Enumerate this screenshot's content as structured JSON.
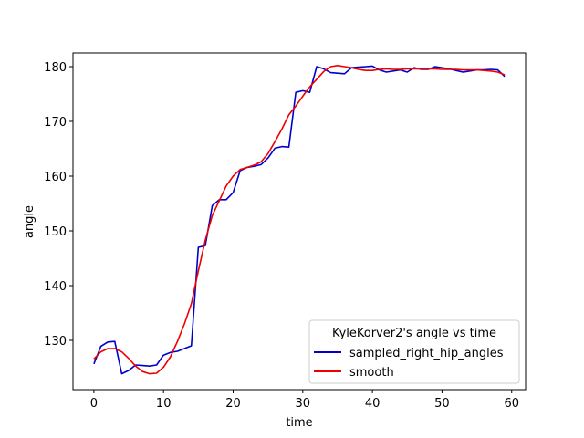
{
  "chart_data": {
    "type": "line",
    "xlabel": "time",
    "ylabel": "angle",
    "xlim": [
      -3,
      62
    ],
    "ylim": [
      121,
      182.5
    ],
    "xticks": [
      0,
      10,
      20,
      30,
      40,
      50,
      60
    ],
    "yticks": [
      130,
      140,
      150,
      160,
      170,
      180
    ],
    "grid": false,
    "legend": {
      "title": "KyleKorver2's angle vs time",
      "placement": "lower-right"
    },
    "colors": {
      "series_0": "#0000cc",
      "series_1": "#ee0000"
    },
    "x": [
      0,
      1,
      2,
      3,
      4,
      5,
      6,
      7,
      8,
      9,
      10,
      11,
      12,
      13,
      14,
      15,
      16,
      17,
      18,
      19,
      20,
      21,
      22,
      23,
      24,
      25,
      26,
      27,
      28,
      29,
      30,
      31,
      32,
      33,
      34,
      35,
      36,
      37,
      38,
      39,
      40,
      41,
      42,
      43,
      44,
      45,
      46,
      47,
      48,
      49,
      50,
      51,
      52,
      53,
      54,
      55,
      56,
      57,
      58,
      59
    ],
    "series": [
      {
        "name": "sampled_right_hip_angles",
        "values": [
          125.7,
          128.9,
          129.7,
          129.8,
          123.9,
          124.5,
          125.5,
          125.4,
          125.3,
          125.5,
          127.3,
          127.8,
          128.0,
          128.5,
          129.0,
          147.0,
          147.3,
          154.6,
          155.7,
          155.7,
          157.0,
          161.0,
          161.6,
          161.8,
          162.1,
          163.3,
          165.1,
          165.4,
          165.3,
          175.3,
          175.6,
          175.3,
          180.0,
          179.6,
          178.9,
          178.8,
          178.7,
          179.8,
          179.9,
          180.0,
          180.1,
          179.4,
          179.0,
          179.2,
          179.4,
          179.0,
          179.8,
          179.5,
          179.5,
          180.0,
          179.8,
          179.6,
          179.3,
          179.0,
          179.2,
          179.4,
          179.4,
          179.5,
          179.4,
          178.2
        ]
      },
      {
        "name": "smooth",
        "values": [
          126.6,
          127.9,
          128.5,
          128.5,
          127.9,
          126.7,
          125.3,
          124.3,
          123.9,
          124.0,
          125.1,
          127.0,
          129.8,
          133.0,
          136.7,
          142.7,
          148.3,
          152.8,
          155.5,
          158.2,
          160.0,
          161.2,
          161.6,
          162.0,
          162.6,
          164.1,
          166.3,
          168.6,
          171.2,
          172.8,
          174.6,
          176.3,
          177.7,
          179.1,
          180.0,
          180.2,
          180.0,
          179.8,
          179.5,
          179.3,
          179.3,
          179.5,
          179.6,
          179.5,
          179.5,
          179.6,
          179.6,
          179.6,
          179.6,
          179.6,
          179.5,
          179.5,
          179.5,
          179.4,
          179.4,
          179.4,
          179.3,
          179.2,
          179.0,
          178.5
        ]
      }
    ]
  }
}
